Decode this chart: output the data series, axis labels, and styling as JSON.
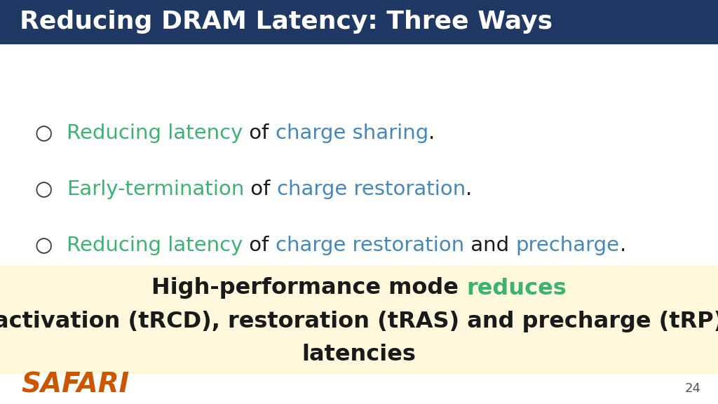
{
  "title": "Reducing DRAM Latency: Three Ways",
  "title_bg_color": "#1F3864",
  "title_text_color": "#FFFFFF",
  "slide_bg_color": "#FFFFFF",
  "bullet_points": [
    {
      "parts": [
        {
          "text": "Reducing latency",
          "color": "#3CB371"
        },
        {
          "text": " of ",
          "color": "#1a1a1a"
        },
        {
          "text": "charge sharing",
          "color": "#4488BB"
        },
        {
          "text": ".",
          "color": "#1a1a1a"
        }
      ]
    },
    {
      "parts": [
        {
          "text": "Early-termination",
          "color": "#3CB371"
        },
        {
          "text": " of ",
          "color": "#1a1a1a"
        },
        {
          "text": "charge restoration",
          "color": "#4488BB"
        },
        {
          "text": ".",
          "color": "#1a1a1a"
        }
      ]
    },
    {
      "parts": [
        {
          "text": "Reducing latency",
          "color": "#3CB371"
        },
        {
          "text": " of ",
          "color": "#1a1a1a"
        },
        {
          "text": "charge restoration",
          "color": "#4488BB"
        },
        {
          "text": " and ",
          "color": "#1a1a1a"
        },
        {
          "text": "precharge",
          "color": "#4488BB"
        },
        {
          "text": ".",
          "color": "#1a1a1a"
        }
      ]
    }
  ],
  "callout_bg_color": "#FFF8DC",
  "callout_line1_parts": [
    {
      "text": "High-performance mode ",
      "color": "#1a1a1a"
    },
    {
      "text": "reduces",
      "color": "#3CB371"
    }
  ],
  "callout_line2": "activation (tRCD), restoration (tRAS) and precharge (tRP)",
  "callout_line3": "latencies",
  "safari_text": "SAFARI",
  "safari_color": "#CC5500",
  "page_number": "24",
  "bullet_font_size": 21,
  "callout_font_size": 23,
  "title_font_size": 26
}
